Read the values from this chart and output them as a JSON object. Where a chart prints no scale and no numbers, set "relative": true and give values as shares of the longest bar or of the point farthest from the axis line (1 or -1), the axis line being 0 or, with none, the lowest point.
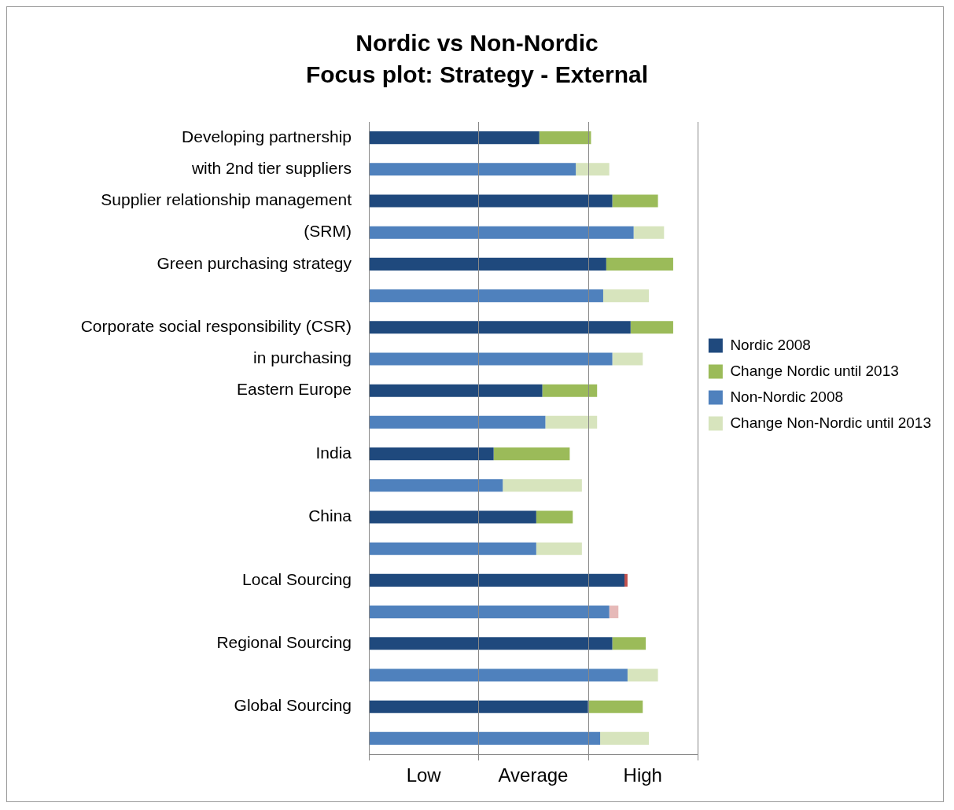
{
  "chart_data": {
    "type": "bar",
    "orientation": "horizontal",
    "stacked": true,
    "relative": true,
    "title": "Nordic vs Non-Nordic",
    "subtitle": "Focus plot: Strategy - External",
    "categories": [
      "Developing partnership",
      "with 2nd tier suppliers",
      "Supplier relationship management",
      "(SRM)",
      "Green purchasing strategy",
      null,
      "Corporate social responsibility (CSR)",
      "in purchasing",
      "Eastern Europe",
      null,
      "India",
      null,
      "China",
      null,
      "Local Sourcing",
      null,
      "Regional Sourcing",
      null,
      "Global Sourcing",
      null
    ],
    "series": [
      {
        "name": "Nordic 2008",
        "color": "#1f497d",
        "values": [
          0.56,
          null,
          0.8,
          null,
          0.78,
          null,
          0.86,
          null,
          0.57,
          null,
          0.41,
          null,
          0.55,
          null,
          0.84,
          null,
          0.8,
          null,
          0.72,
          null
        ]
      },
      {
        "name": "Change Nordic until 2013",
        "color": "#9bbb59",
        "values": [
          0.17,
          null,
          0.15,
          null,
          0.22,
          null,
          0.14,
          null,
          0.18,
          null,
          0.25,
          null,
          0.12,
          null,
          0.01,
          null,
          0.11,
          null,
          0.18,
          null
        ],
        "colors": [
          "#9bbb59",
          null,
          "#9bbb59",
          null,
          "#9bbb59",
          null,
          "#9bbb59",
          null,
          "#9bbb59",
          null,
          "#9bbb59",
          null,
          "#9bbb59",
          null,
          "#c0504d",
          null,
          "#9bbb59",
          null,
          "#9bbb59",
          null
        ]
      },
      {
        "name": "Non-Nordic 2008",
        "color": "#4f81bd",
        "values": [
          null,
          0.68,
          null,
          0.87,
          null,
          0.77,
          null,
          0.8,
          null,
          0.58,
          null,
          0.44,
          null,
          0.55,
          null,
          0.79,
          null,
          0.85,
          null,
          0.76
        ]
      },
      {
        "name": "Change Non-Nordic until 2013",
        "color": "#d7e4bd",
        "values": [
          null,
          0.11,
          null,
          0.1,
          null,
          0.15,
          null,
          0.1,
          null,
          0.17,
          null,
          0.26,
          null,
          0.15,
          null,
          0.03,
          null,
          0.1,
          null,
          0.16
        ],
        "colors": [
          null,
          "#d7e4bd",
          null,
          "#d7e4bd",
          null,
          "#d7e4bd",
          null,
          "#d7e4bd",
          null,
          "#d7e4bd",
          null,
          "#d7e4bd",
          null,
          "#d7e4bd",
          null,
          "#e6b9b8",
          null,
          "#d7e4bd",
          null,
          "#d7e4bd"
        ]
      }
    ],
    "annotations": [
      "Low",
      "Average",
      "High"
    ],
    "legend": "right"
  }
}
